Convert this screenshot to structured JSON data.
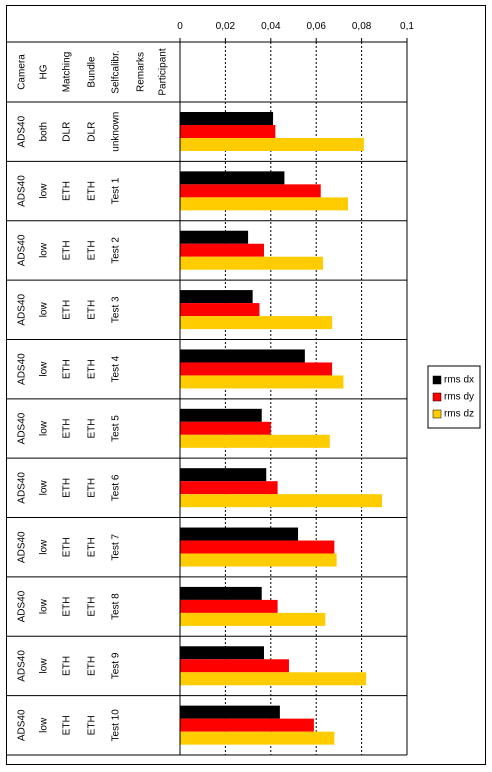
{
  "chart_data": {
    "type": "bar",
    "orientation": "horizontal",
    "x_ticks": [
      "0",
      "0,02",
      "0,04",
      "0,06",
      "0,08",
      "0,1"
    ],
    "xlim": [
      0,
      0.1
    ],
    "grid": true,
    "legend_position": "right",
    "table_headers": [
      "Camera",
      "HG",
      "Matching",
      "Bundle",
      "Selfcalibr.",
      "Remarks",
      "Participant"
    ],
    "rows": [
      {
        "camera": "ADS40",
        "hg": "both",
        "matching": "DLR",
        "bundle": "DLR",
        "selfcalibr": "unknown",
        "remarks": "",
        "participant": ""
      },
      {
        "camera": "ADS40",
        "hg": "low",
        "matching": "ETH",
        "bundle": "ETH",
        "selfcalibr": "Test 1",
        "remarks": "",
        "participant": ""
      },
      {
        "camera": "ADS40",
        "hg": "low",
        "matching": "ETH",
        "bundle": "ETH",
        "selfcalibr": "Test 2",
        "remarks": "",
        "participant": ""
      },
      {
        "camera": "ADS40",
        "hg": "low",
        "matching": "ETH",
        "bundle": "ETH",
        "selfcalibr": "Test 3",
        "remarks": "",
        "participant": ""
      },
      {
        "camera": "ADS40",
        "hg": "low",
        "matching": "ETH",
        "bundle": "ETH",
        "selfcalibr": "Test 4",
        "remarks": "",
        "participant": ""
      },
      {
        "camera": "ADS40",
        "hg": "low",
        "matching": "ETH",
        "bundle": "ETH",
        "selfcalibr": "Test 5",
        "remarks": "",
        "participant": ""
      },
      {
        "camera": "ADS40",
        "hg": "low",
        "matching": "ETH",
        "bundle": "ETH",
        "selfcalibr": "Test 6",
        "remarks": "",
        "participant": ""
      },
      {
        "camera": "ADS40",
        "hg": "low",
        "matching": "ETH",
        "bundle": "ETH",
        "selfcalibr": "Test 7",
        "remarks": "",
        "participant": ""
      },
      {
        "camera": "ADS40",
        "hg": "low",
        "matching": "ETH",
        "bundle": "ETH",
        "selfcalibr": "Test 8",
        "remarks": "",
        "participant": ""
      },
      {
        "camera": "ADS40",
        "hg": "low",
        "matching": "ETH",
        "bundle": "ETH",
        "selfcalibr": "Test 9",
        "remarks": "",
        "participant": ""
      },
      {
        "camera": "ADS40",
        "hg": "low",
        "matching": "ETH",
        "bundle": "ETH",
        "selfcalibr": "Test 10",
        "remarks": "",
        "participant": ""
      }
    ],
    "series": [
      {
        "name": "rms dx",
        "color": "#000000",
        "values": [
          0.041,
          0.046,
          0.03,
          0.032,
          0.055,
          0.036,
          0.038,
          0.052,
          0.036,
          0.037,
          0.044
        ]
      },
      {
        "name": "rms dy",
        "color": "#ff0000",
        "values": [
          0.042,
          0.062,
          0.037,
          0.035,
          0.067,
          0.04,
          0.043,
          0.068,
          0.043,
          0.048,
          0.059
        ]
      },
      {
        "name": "rms dz",
        "color": "#ffcc00",
        "values": [
          0.081,
          0.074,
          0.063,
          0.067,
          0.072,
          0.066,
          0.089,
          0.069,
          0.064,
          0.082,
          0.068
        ]
      }
    ]
  }
}
